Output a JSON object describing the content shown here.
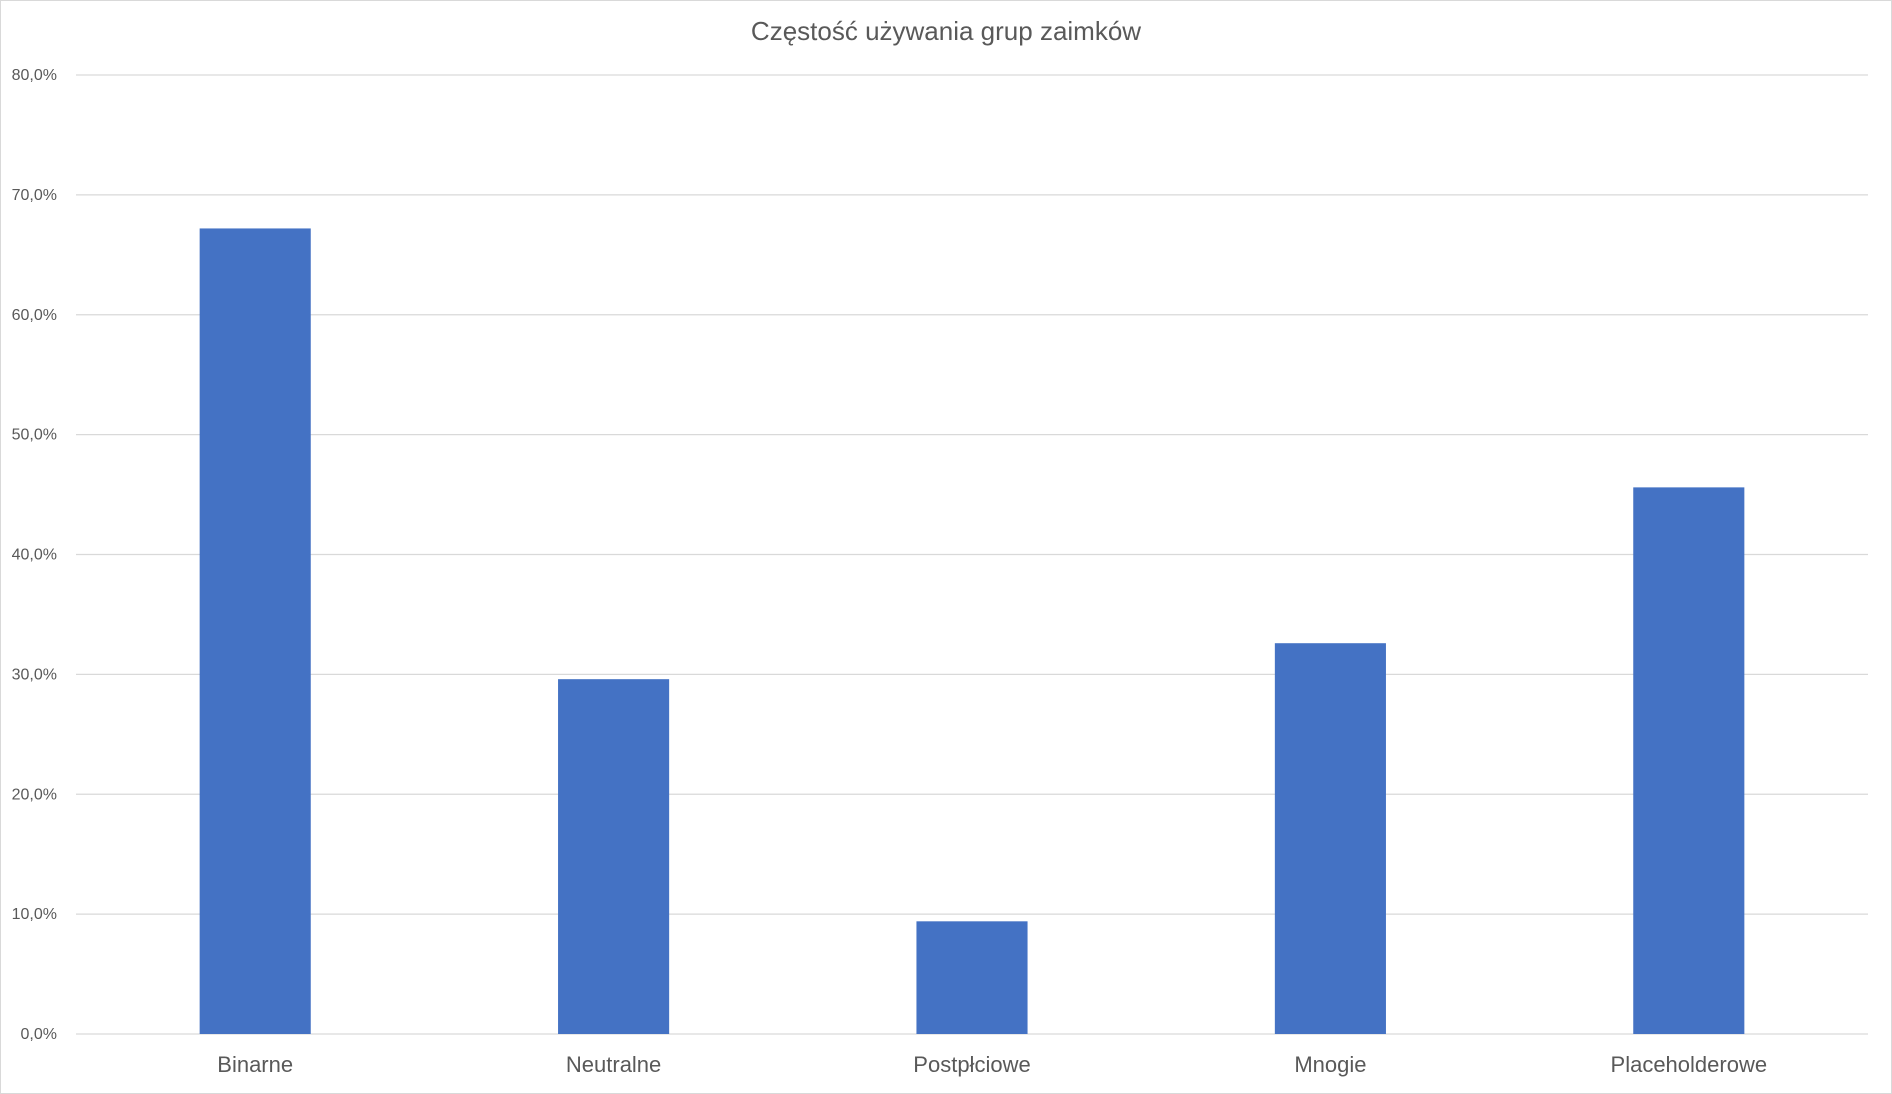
{
  "chart_data": {
    "type": "bar",
    "title": "Częstość używania grup zaimków",
    "categories": [
      "Binarne",
      "Neutralne",
      "Postpłciowe",
      "Mnogie",
      "Placeholderowe"
    ],
    "values": [
      67.2,
      29.6,
      9.4,
      32.6,
      45.6
    ],
    "y_ticks": [
      "0,0%",
      "10,0%",
      "20,0%",
      "30,0%",
      "40,0%",
      "50,0%",
      "60,0%",
      "70,0%",
      "80,0%"
    ],
    "ylim": [
      0,
      80
    ],
    "xlabel": "",
    "ylabel": "",
    "grid": true,
    "legend": "none",
    "bar_color": "#4472C4",
    "grid_color": "#d9d9d9"
  }
}
